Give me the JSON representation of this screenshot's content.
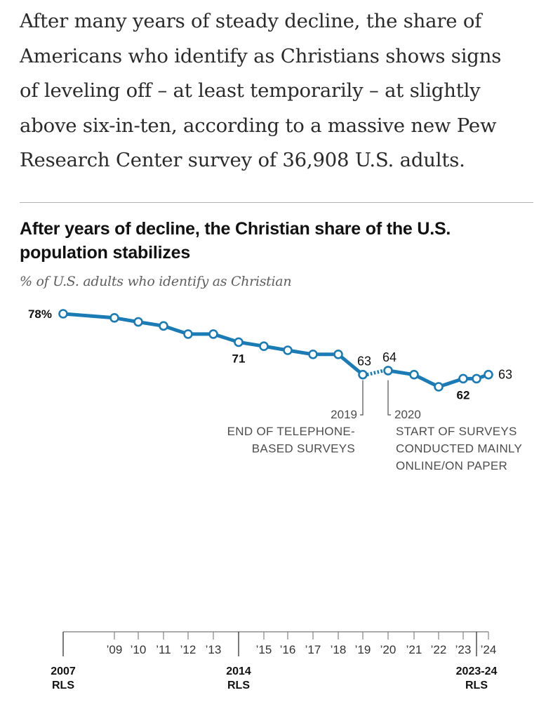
{
  "article": {
    "intro_lines": [
      "After many years of steady decline, the share of",
      "Americans who identify as Christians shows signs",
      "of leveling off – at least temporarily – at slightly",
      "above six-in-ten, according to a massive new Pew",
      "Research Center survey of 36,908 U.S. adults."
    ]
  },
  "colors": {
    "line": "#1b7bb5",
    "axis": "#777777",
    "text": "#111111",
    "annotation": "#4d4d4d",
    "rule": "#b3b3b3"
  },
  "chart_data": {
    "type": "line",
    "title": "After years of decline, the Christian share of the U.S. population stabilizes",
    "subtitle": "% of U.S. adults who identify as Christian",
    "ylim": [
      55,
      80
    ],
    "xlim": [
      2007,
      2024
    ],
    "series": [
      {
        "name": "Telephone-based surveys",
        "points": [
          {
            "x": 2007,
            "y": 78
          },
          {
            "x": 2009,
            "y": 77
          },
          {
            "x": 2010,
            "y": 76
          },
          {
            "x": 2011,
            "y": 75
          },
          {
            "x": 2012,
            "y": 73
          },
          {
            "x": 2013,
            "y": 73
          },
          {
            "x": 2014,
            "y": 71
          },
          {
            "x": 2015,
            "y": 70
          },
          {
            "x": 2016,
            "y": 69
          },
          {
            "x": 2017,
            "y": 68
          },
          {
            "x": 2018,
            "y": 68
          },
          {
            "x": 2019,
            "y": 63
          }
        ]
      },
      {
        "name": "Surveys conducted mainly online/on paper",
        "points": [
          {
            "x": 2020,
            "y": 64
          },
          {
            "x": 2021,
            "y": 63
          },
          {
            "x": 2022,
            "y": 60
          },
          {
            "x": 2023,
            "y": 62
          },
          {
            "x": 2023.5,
            "y": 62
          },
          {
            "x": 2024,
            "y": 63
          }
        ]
      }
    ],
    "data_labels": [
      {
        "x": 2007,
        "y": 78,
        "text": "78%",
        "position": "left",
        "bold": true
      },
      {
        "x": 2014,
        "y": 71,
        "text": "71",
        "position": "below",
        "bold": true
      },
      {
        "x": 2019,
        "y": 63,
        "text": "63",
        "position": "above",
        "bold": false
      },
      {
        "x": 2020,
        "y": 64,
        "text": "64",
        "position": "above",
        "bold": false
      },
      {
        "x": 2023,
        "y": 62,
        "text": "62",
        "position": "below",
        "bold": true
      },
      {
        "x": 2024,
        "y": 63,
        "text": "63",
        "position": "right",
        "bold": false
      }
    ],
    "annotations": [
      {
        "x": 2019,
        "year": "2019",
        "lines": [
          "END OF TELEPHONE-",
          "BASED SURVEYS"
        ],
        "align": "right"
      },
      {
        "x": 2020,
        "year": "2020",
        "lines": [
          "START OF SURVEYS",
          "CONDUCTED MAINLY",
          "ONLINE/ON PAPER"
        ],
        "align": "left"
      }
    ],
    "x_ticks": [
      {
        "x": 2007,
        "label": "2007",
        "sublabel": "RLS",
        "major": true
      },
      {
        "x": 2009,
        "label": "’09"
      },
      {
        "x": 2010,
        "label": "’10"
      },
      {
        "x": 2011,
        "label": "’11"
      },
      {
        "x": 2012,
        "label": "’12"
      },
      {
        "x": 2013,
        "label": "’13"
      },
      {
        "x": 2014,
        "label": "2014",
        "sublabel": "RLS",
        "major": true
      },
      {
        "x": 2015,
        "label": "’15"
      },
      {
        "x": 2016,
        "label": "’16"
      },
      {
        "x": 2017,
        "label": "’17"
      },
      {
        "x": 2018,
        "label": "’18"
      },
      {
        "x": 2019,
        "label": "’19"
      },
      {
        "x": 2020,
        "label": "’20"
      },
      {
        "x": 2021,
        "label": "’21"
      },
      {
        "x": 2022,
        "label": "’22"
      },
      {
        "x": 2023,
        "label": "’23"
      },
      {
        "x": 2023.5,
        "label": "2023-24",
        "sublabel": "RLS",
        "major": true
      },
      {
        "x": 2024,
        "label": "’24"
      }
    ]
  }
}
